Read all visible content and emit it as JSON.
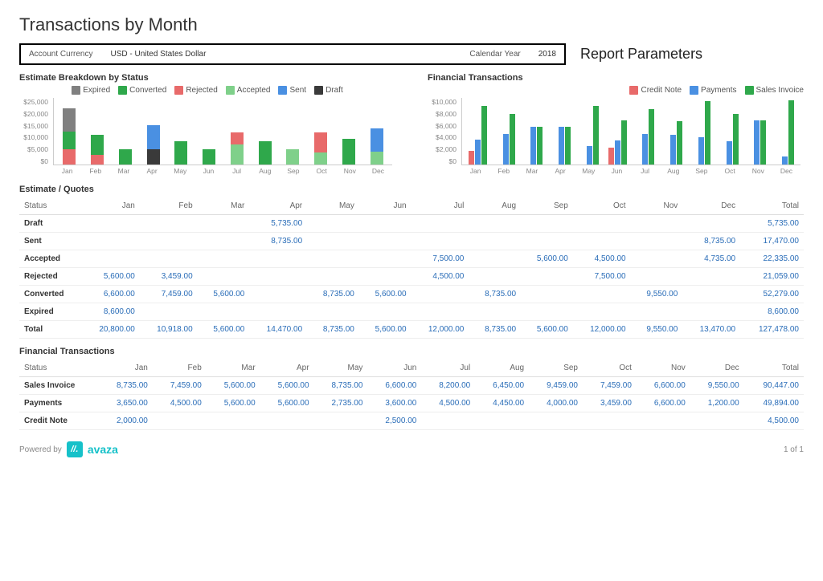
{
  "page_title": "Transactions by Month",
  "report_params_heading": "Report Parameters",
  "params": {
    "currency_label": "Account Currency",
    "currency_value": "USD - United States Dollar",
    "year_label": "Calendar Year",
    "year_value": "2018"
  },
  "months": [
    "Jan",
    "Feb",
    "Mar",
    "Apr",
    "May",
    "Jun",
    "Jul",
    "Aug",
    "Sep",
    "Oct",
    "Nov",
    "Dec"
  ],
  "chart1": {
    "title": "Estimate Breakdown by Status",
    "type": "bar-stacked",
    "ylim": [
      0,
      25000
    ],
    "yticks": [
      "$25,000",
      "$20,000",
      "$15,000",
      "$10,000",
      "$5,000",
      "$0"
    ],
    "legend": [
      {
        "label": "Expired",
        "color": "#808080"
      },
      {
        "label": "Converted",
        "color": "#2fa84b"
      },
      {
        "label": "Rejected",
        "color": "#e86a6a"
      },
      {
        "label": "Accepted",
        "color": "#7fd08a"
      },
      {
        "label": "Sent",
        "color": "#4a90e2"
      },
      {
        "label": "Draft",
        "color": "#3a3a3a"
      }
    ],
    "stacks": [
      [
        {
          "c": "#e86a6a",
          "v": 5600
        },
        {
          "c": "#2fa84b",
          "v": 6600
        },
        {
          "c": "#808080",
          "v": 8600
        }
      ],
      [
        {
          "c": "#e86a6a",
          "v": 3459
        },
        {
          "c": "#2fa84b",
          "v": 7459
        }
      ],
      [
        {
          "c": "#2fa84b",
          "v": 5600
        }
      ],
      [
        {
          "c": "#3a3a3a",
          "v": 5735
        },
        {
          "c": "#4a90e2",
          "v": 8735
        }
      ],
      [
        {
          "c": "#2fa84b",
          "v": 8735
        }
      ],
      [
        {
          "c": "#2fa84b",
          "v": 5600
        }
      ],
      [
        {
          "c": "#7fd08a",
          "v": 7500
        },
        {
          "c": "#e86a6a",
          "v": 4500
        }
      ],
      [
        {
          "c": "#2fa84b",
          "v": 8735
        }
      ],
      [
        {
          "c": "#7fd08a",
          "v": 5600
        }
      ],
      [
        {
          "c": "#7fd08a",
          "v": 4500
        },
        {
          "c": "#e86a6a",
          "v": 7500
        }
      ],
      [
        {
          "c": "#2fa84b",
          "v": 9550
        }
      ],
      [
        {
          "c": "#7fd08a",
          "v": 4735
        },
        {
          "c": "#4a90e2",
          "v": 8735
        }
      ]
    ]
  },
  "chart2": {
    "title": "Financial Transactions",
    "type": "bar-grouped",
    "ylim": [
      0,
      10000
    ],
    "yticks": [
      "$10,000",
      "$8,000",
      "$6,000",
      "$4,000",
      "$2,000",
      "$0"
    ],
    "legend": [
      {
        "label": "Credit Note",
        "color": "#e86a6a"
      },
      {
        "label": "Payments",
        "color": "#4a90e2"
      },
      {
        "label": "Sales Invoice",
        "color": "#2fa84b"
      }
    ],
    "groups": [
      [
        2000,
        3650,
        8735
      ],
      [
        0,
        4500,
        7459
      ],
      [
        0,
        5600,
        5600
      ],
      [
        0,
        5600,
        5600
      ],
      [
        0,
        2735,
        8735
      ],
      [
        2500,
        3600,
        6600
      ],
      [
        0,
        4500,
        8200
      ],
      [
        0,
        4450,
        6450
      ],
      [
        0,
        4000,
        9459
      ],
      [
        0,
        3459,
        7459
      ],
      [
        0,
        6600,
        6600
      ],
      [
        0,
        1200,
        9550
      ]
    ],
    "series_colors": [
      "#e86a6a",
      "#4a90e2",
      "#2fa84b"
    ]
  },
  "table1": {
    "title": "Estimate / Quotes",
    "headers": [
      "Status",
      "Jan",
      "Feb",
      "Mar",
      "Apr",
      "May",
      "Jun",
      "Jul",
      "Aug",
      "Sep",
      "Oct",
      "Nov",
      "Dec",
      "Total"
    ],
    "rows": [
      [
        "Draft",
        "",
        "",
        "",
        "5,735.00",
        "",
        "",
        "",
        "",
        "",
        "",
        "",
        "",
        "5,735.00"
      ],
      [
        "Sent",
        "",
        "",
        "",
        "8,735.00",
        "",
        "",
        "",
        "",
        "",
        "",
        "",
        "8,735.00",
        "17,470.00"
      ],
      [
        "Accepted",
        "",
        "",
        "",
        "",
        "",
        "",
        "7,500.00",
        "",
        "5,600.00",
        "4,500.00",
        "",
        "4,735.00",
        "22,335.00"
      ],
      [
        "Rejected",
        "5,600.00",
        "3,459.00",
        "",
        "",
        "",
        "",
        "4,500.00",
        "",
        "",
        "7,500.00",
        "",
        "",
        "21,059.00"
      ],
      [
        "Converted",
        "6,600.00",
        "7,459.00",
        "5,600.00",
        "",
        "8,735.00",
        "5,600.00",
        "",
        "8,735.00",
        "",
        "",
        "9,550.00",
        "",
        "52,279.00"
      ],
      [
        "Expired",
        "8,600.00",
        "",
        "",
        "",
        "",
        "",
        "",
        "",
        "",
        "",
        "",
        "",
        "8,600.00"
      ],
      [
        "Total",
        "20,800.00",
        "10,918.00",
        "5,600.00",
        "14,470.00",
        "8,735.00",
        "5,600.00",
        "12,000.00",
        "8,735.00",
        "5,600.00",
        "12,000.00",
        "9,550.00",
        "13,470.00",
        "127,478.00"
      ]
    ]
  },
  "table2": {
    "title": "Financial Transactions",
    "headers": [
      "Status",
      "Jan",
      "Feb",
      "Mar",
      "Apr",
      "May",
      "Jun",
      "Jul",
      "Aug",
      "Sep",
      "Oct",
      "Nov",
      "Dec",
      "Total"
    ],
    "rows": [
      [
        "Sales Invoice",
        "8,735.00",
        "7,459.00",
        "5,600.00",
        "5,600.00",
        "8,735.00",
        "6,600.00",
        "8,200.00",
        "6,450.00",
        "9,459.00",
        "7,459.00",
        "6,600.00",
        "9,550.00",
        "90,447.00"
      ],
      [
        "Payments",
        "3,650.00",
        "4,500.00",
        "5,600.00",
        "5,600.00",
        "2,735.00",
        "3,600.00",
        "4,500.00",
        "4,450.00",
        "4,000.00",
        "3,459.00",
        "6,600.00",
        "1,200.00",
        "49,894.00"
      ],
      [
        "Credit Note",
        "2,000.00",
        "",
        "",
        "",
        "",
        "2,500.00",
        "",
        "",
        "",
        "",
        "",
        "",
        "4,500.00"
      ]
    ]
  },
  "footer": {
    "powered_by": "Powered by",
    "brand": "avaza",
    "page_indicator": "1 of 1"
  }
}
